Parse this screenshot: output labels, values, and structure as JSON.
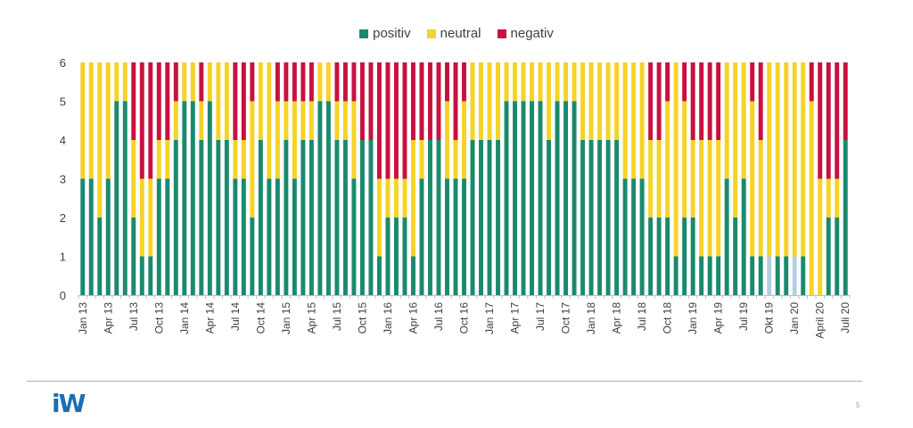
{
  "legend": [
    {
      "key": "positiv",
      "label": "positiv",
      "color": "#1a8a6e"
    },
    {
      "key": "neutral",
      "label": "neutral",
      "color": "#f5d327"
    },
    {
      "key": "negativ",
      "label": "negativ",
      "color": "#c8113f"
    }
  ],
  "footer": {
    "logo": "iW",
    "page_number": "5"
  },
  "chart_data": {
    "type": "bar",
    "stacked": true,
    "title": "",
    "xlabel": "",
    "ylabel": "",
    "ylim": [
      0,
      6
    ],
    "yticks": [
      0,
      1,
      2,
      3,
      4,
      5,
      6
    ],
    "grid": false,
    "legend_position": "top-center",
    "highlight_color": "#b4cfe3",
    "categories": [
      "Jan 13",
      "Feb 13",
      "Mar 13",
      "Apr 13",
      "May 13",
      "Jun 13",
      "Jul 13",
      "Aug 13",
      "Sep 13",
      "Oct 13",
      "Nov 13",
      "Dec 13",
      "Jan 14",
      "Feb 14",
      "Mar 14",
      "Apr 14",
      "May 14",
      "Jun 14",
      "Jul 14",
      "Aug 14",
      "Sep 14",
      "Oct 14",
      "Nov 14",
      "Dec 14",
      "Jan 15",
      "Feb 15",
      "Mar 15",
      "Apr 15",
      "May 15",
      "Jun 15",
      "Jul 15",
      "Aug 15",
      "Sep 15",
      "Oct 15",
      "Nov 15",
      "Dec 15",
      "Jan 16",
      "Feb 16",
      "Mar 16",
      "Apr 16",
      "May 16",
      "Jun 16",
      "Jul 16",
      "Aug 16",
      "Sep 16",
      "Oct 16",
      "Nov 16",
      "Dec 16",
      "Jan 17",
      "Feb 17",
      "Mar 17",
      "Apr 17",
      "May 17",
      "Jun 17",
      "Jul 17",
      "Aug 17",
      "Sep 17",
      "Oct 17",
      "Nov 17",
      "Dec 17",
      "Jan 18",
      "Feb 18",
      "Mar 18",
      "Apr 18",
      "May 18",
      "Jun 18",
      "Jul 18",
      "Aug 18",
      "Sep 18",
      "Oct 18",
      "Nov 18",
      "Dec 18",
      "Jan 19",
      "Feb 19",
      "Mar 19",
      "Apr 19",
      "May 19",
      "Jun 19",
      "Jul 19",
      "Aug 19",
      "Sep 19",
      "Okt 19",
      "Nov 19",
      "Dec 19",
      "Jan 20",
      "Feb 20",
      "Mar 20",
      "April 20",
      "May 20",
      "Jun 20",
      "Juli 20"
    ],
    "tick_labels": [
      {
        "index": 0,
        "label": "Jan 13"
      },
      {
        "index": 3,
        "label": "Apr 13"
      },
      {
        "index": 6,
        "label": "Jul 13"
      },
      {
        "index": 9,
        "label": "Oct 13"
      },
      {
        "index": 12,
        "label": "Jan 14"
      },
      {
        "index": 15,
        "label": "Apr 14"
      },
      {
        "index": 18,
        "label": "Jul 14"
      },
      {
        "index": 21,
        "label": "Oct 14"
      },
      {
        "index": 24,
        "label": "Jan 15"
      },
      {
        "index": 27,
        "label": "Apr 15"
      },
      {
        "index": 30,
        "label": "Jul 15"
      },
      {
        "index": 33,
        "label": "Oct 15"
      },
      {
        "index": 36,
        "label": "Jan 16"
      },
      {
        "index": 39,
        "label": "Apr 16"
      },
      {
        "index": 42,
        "label": "Jul 16"
      },
      {
        "index": 45,
        "label": "Oct 16"
      },
      {
        "index": 48,
        "label": "Jan 17"
      },
      {
        "index": 51,
        "label": "Apr 17"
      },
      {
        "index": 54,
        "label": "Jul 17"
      },
      {
        "index": 57,
        "label": "Oct 17"
      },
      {
        "index": 60,
        "label": "Jan 18"
      },
      {
        "index": 63,
        "label": "Apr 18"
      },
      {
        "index": 66,
        "label": "Jul 18"
      },
      {
        "index": 69,
        "label": "Oct 18"
      },
      {
        "index": 72,
        "label": "Jan 19"
      },
      {
        "index": 75,
        "label": "Apr 19"
      },
      {
        "index": 78,
        "label": "Jul 19"
      },
      {
        "index": 81,
        "label": "Okt 19"
      },
      {
        "index": 84,
        "label": "Jan 20"
      },
      {
        "index": 87,
        "label": "April 20"
      },
      {
        "index": 90,
        "label": "Juli 20"
      }
    ],
    "highlighted_positiv_indices": [
      81,
      84
    ],
    "series": [
      {
        "name": "positiv",
        "values": [
          3,
          3,
          2,
          3,
          5,
          5,
          2,
          1,
          1,
          3,
          3,
          4,
          5,
          5,
          4,
          5,
          4,
          4,
          3,
          3,
          2,
          4,
          3,
          3,
          4,
          3,
          4,
          4,
          5,
          5,
          4,
          4,
          3,
          4,
          4,
          1,
          2,
          2,
          2,
          1,
          3,
          4,
          4,
          3,
          3,
          3,
          4,
          4,
          4,
          4,
          5,
          5,
          5,
          5,
          5,
          4,
          5,
          5,
          5,
          4,
          4,
          4,
          4,
          4,
          3,
          3,
          3,
          2,
          2,
          2,
          1,
          2,
          2,
          1,
          1,
          1,
          3,
          2,
          3,
          1,
          1,
          1,
          1,
          1,
          1,
          1,
          0,
          0,
          2,
          2,
          4
        ]
      },
      {
        "name": "neutral",
        "values": [
          3,
          3,
          4,
          3,
          1,
          1,
          2,
          2,
          2,
          1,
          1,
          1,
          1,
          1,
          1,
          1,
          2,
          2,
          1,
          1,
          3,
          2,
          3,
          2,
          1,
          2,
          1,
          1,
          1,
          1,
          1,
          1,
          2,
          0,
          0,
          2,
          1,
          1,
          1,
          3,
          1,
          0,
          0,
          2,
          1,
          2,
          2,
          2,
          2,
          2,
          1,
          1,
          1,
          1,
          1,
          2,
          1,
          1,
          1,
          2,
          2,
          2,
          2,
          2,
          3,
          3,
          3,
          2,
          2,
          3,
          5,
          3,
          2,
          3,
          3,
          3,
          3,
          4,
          3,
          4,
          3,
          5,
          5,
          5,
          5,
          5,
          5,
          3,
          1,
          1,
          0
        ]
      },
      {
        "name": "negativ",
        "values": [
          0,
          0,
          0,
          0,
          0,
          0,
          2,
          3,
          3,
          2,
          2,
          1,
          0,
          0,
          1,
          0,
          0,
          0,
          2,
          2,
          1,
          0,
          0,
          1,
          1,
          1,
          1,
          1,
          0,
          0,
          1,
          1,
          1,
          2,
          2,
          3,
          3,
          3,
          3,
          2,
          2,
          2,
          2,
          1,
          2,
          1,
          0,
          0,
          0,
          0,
          0,
          0,
          0,
          0,
          0,
          0,
          0,
          0,
          0,
          0,
          0,
          0,
          0,
          0,
          0,
          0,
          0,
          2,
          2,
          1,
          0,
          1,
          2,
          2,
          2,
          2,
          0,
          0,
          0,
          1,
          2,
          0,
          0,
          0,
          0,
          0,
          1,
          3,
          3,
          3,
          2
        ]
      }
    ]
  }
}
